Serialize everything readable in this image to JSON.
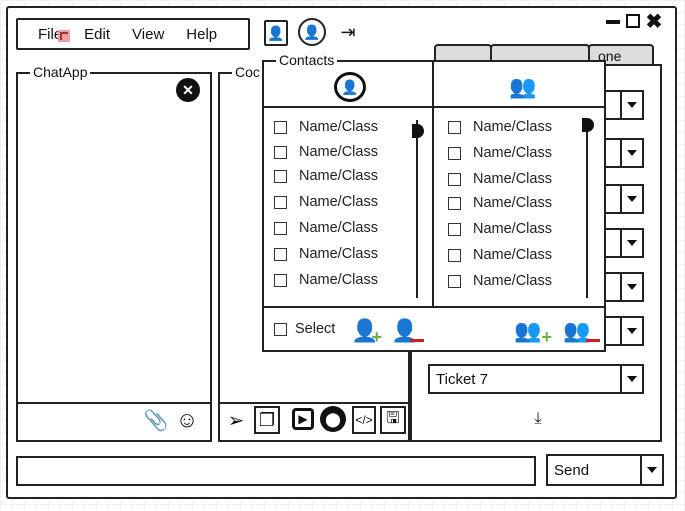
{
  "window": {
    "controls": [
      "minimize-icon",
      "maximize-icon",
      "close-icon"
    ]
  },
  "menu": {
    "items": [
      "File",
      "Edit",
      "View",
      "Help"
    ]
  },
  "chat_panel": {
    "title": "ChatApp"
  },
  "code_panel": {
    "title": "Coc"
  },
  "contacts": {
    "title": "Contacts",
    "left_items": [
      "Name/Class",
      "Name/Class",
      "Name/Class",
      "Name/Class",
      "Name/Class",
      "Name/Class",
      "Name/Class"
    ],
    "right_items": [
      "Name/Class",
      "Name/Class",
      "Name/Class",
      "Name/Class",
      "Name/Class",
      "Name/Class",
      "Name/Class"
    ],
    "select_label": "Select"
  },
  "tabs": {
    "third_label": "one"
  },
  "tickets": {
    "ticket_label": "Ticket 7"
  },
  "send": {
    "label": "Send"
  },
  "colors": {
    "accent": "#22d3e6",
    "plus": "#6ab04c",
    "minus": "#cc1f1f"
  }
}
